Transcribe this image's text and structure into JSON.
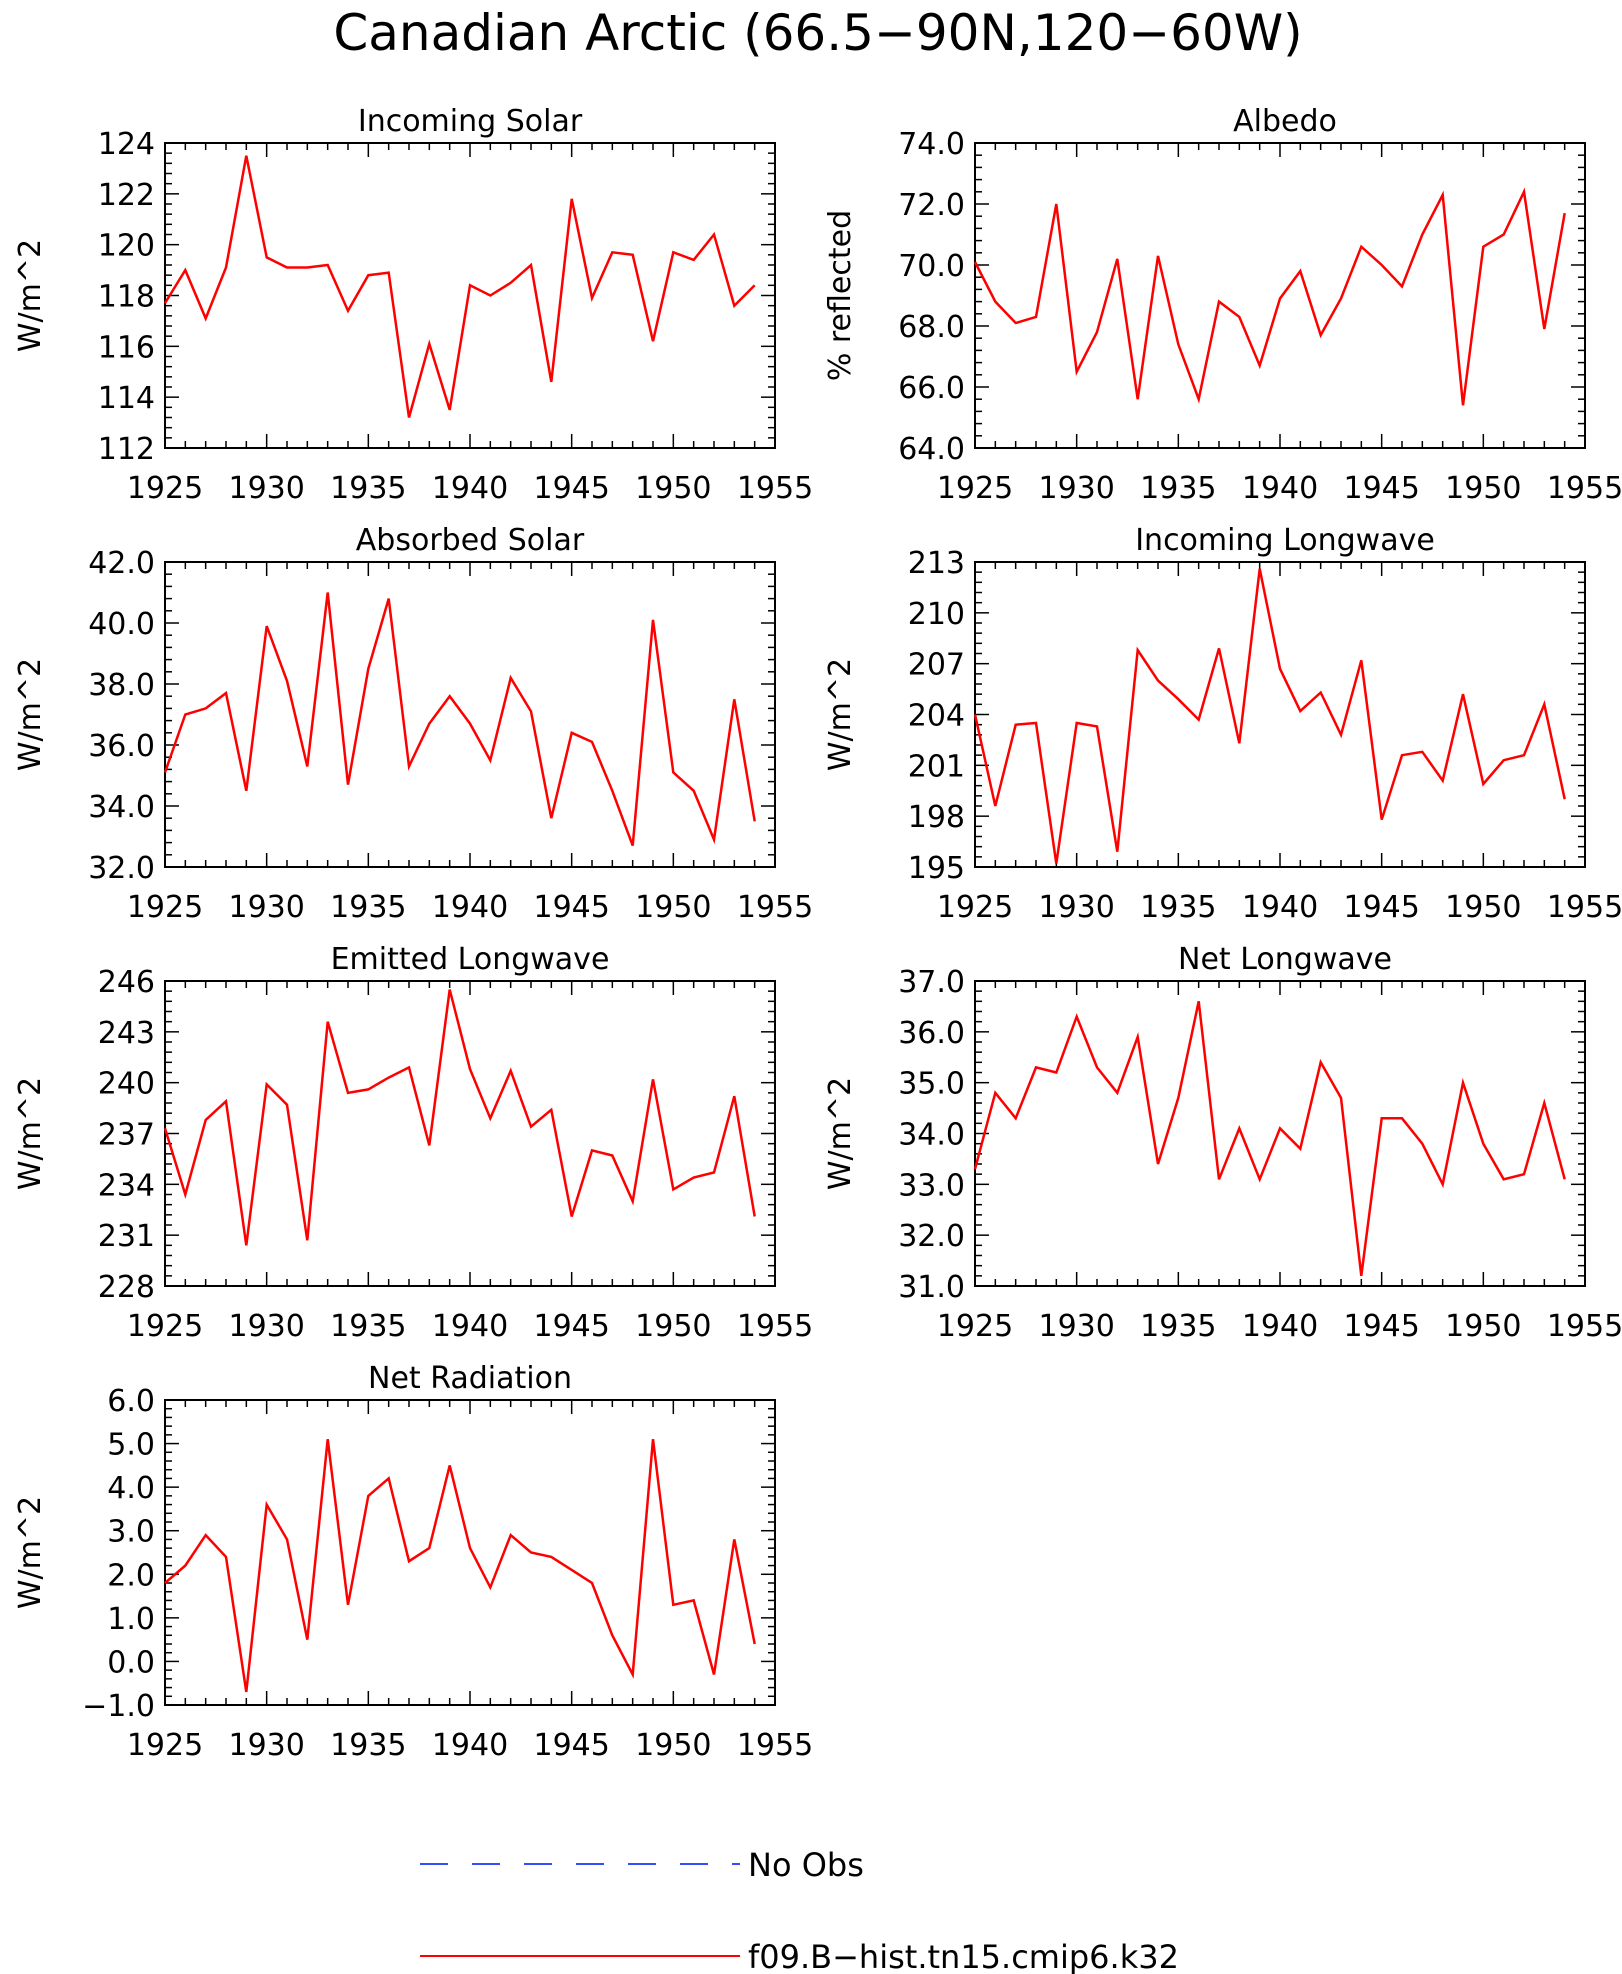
{
  "figure": {
    "title": "Canadian Arctic (66.5−90N,120−60W)",
    "legend": [
      {
        "label": "No Obs",
        "color": "#3050ff",
        "style": "dashed"
      },
      {
        "label": "f09.B−hist.tn15.cmip6.k32",
        "color": "#ff0000",
        "style": "solid"
      }
    ]
  },
  "chart_data": [
    {
      "type": "line",
      "title": "Incoming Solar",
      "ylabel": "W/m^2",
      "xlim": [
        1925,
        1955
      ],
      "ylim": [
        112,
        124
      ],
      "xticks": [
        1925,
        1930,
        1935,
        1940,
        1945,
        1950,
        1955
      ],
      "xtick_labels": [
        "1925",
        "1930",
        "1935",
        "1940",
        "1945",
        "1950",
        "1955"
      ],
      "yticks": [
        112,
        114,
        116,
        118,
        120,
        122,
        124
      ],
      "ytick_labels": [
        "112",
        "114",
        "116",
        "118",
        "120",
        "122",
        "124"
      ],
      "x": [
        1925,
        1926,
        1927,
        1928,
        1929,
        1930,
        1931,
        1932,
        1933,
        1934,
        1935,
        1936,
        1937,
        1938,
        1939,
        1940,
        1941,
        1942,
        1943,
        1944,
        1945,
        1946,
        1947,
        1948,
        1949,
        1950,
        1951,
        1952,
        1953,
        1954
      ],
      "series": [
        {
          "name": "f09.B−hist.tn15.cmip6.k32",
          "color": "#ff0000",
          "values": [
            117.7,
            119.0,
            117.1,
            119.1,
            123.5,
            119.5,
            119.1,
            119.1,
            119.2,
            117.4,
            118.8,
            118.9,
            113.2,
            116.1,
            113.5,
            118.4,
            118.0,
            118.5,
            119.2,
            114.6,
            121.8,
            117.9,
            119.7,
            119.6,
            116.2,
            119.7,
            119.4,
            120.4,
            117.6,
            118.4
          ]
        }
      ]
    },
    {
      "type": "line",
      "title": "Albedo",
      "ylabel": "% reflected",
      "xlim": [
        1925,
        1955
      ],
      "ylim": [
        64,
        74
      ],
      "xticks": [
        1925,
        1930,
        1935,
        1940,
        1945,
        1950,
        1955
      ],
      "xtick_labels": [
        "1925",
        "1930",
        "1935",
        "1940",
        "1945",
        "1950",
        "1955"
      ],
      "yticks": [
        64,
        66,
        68,
        70,
        72,
        74
      ],
      "ytick_labels": [
        "64.0",
        "66.0",
        "68.0",
        "70.0",
        "72.0",
        "74.0"
      ],
      "x": [
        1925,
        1926,
        1927,
        1928,
        1929,
        1930,
        1931,
        1932,
        1933,
        1934,
        1935,
        1936,
        1937,
        1938,
        1939,
        1940,
        1941,
        1942,
        1943,
        1944,
        1945,
        1946,
        1947,
        1948,
        1949,
        1950,
        1951,
        1952,
        1953,
        1954
      ],
      "series": [
        {
          "name": "f09.B−hist.tn15.cmip6.k32",
          "color": "#ff0000",
          "values": [
            70.1,
            68.8,
            68.1,
            68.3,
            72.0,
            66.5,
            67.8,
            70.2,
            65.6,
            70.3,
            67.4,
            65.6,
            68.8,
            68.3,
            66.7,
            68.9,
            69.8,
            67.7,
            68.9,
            70.6,
            70.0,
            69.3,
            71.0,
            72.3,
            65.4,
            70.6,
            71.0,
            72.4,
            67.9,
            71.7
          ]
        }
      ]
    },
    {
      "type": "line",
      "title": "Absorbed Solar",
      "ylabel": "W/m^2",
      "xlim": [
        1925,
        1955
      ],
      "ylim": [
        32,
        42
      ],
      "xticks": [
        1925,
        1930,
        1935,
        1940,
        1945,
        1950,
        1955
      ],
      "xtick_labels": [
        "1925",
        "1930",
        "1935",
        "1940",
        "1945",
        "1950",
        "1955"
      ],
      "yticks": [
        32,
        34,
        36,
        38,
        40,
        42
      ],
      "ytick_labels": [
        "32.0",
        "34.0",
        "36.0",
        "38.0",
        "40.0",
        "42.0"
      ],
      "x": [
        1925,
        1926,
        1927,
        1928,
        1929,
        1930,
        1931,
        1932,
        1933,
        1934,
        1935,
        1936,
        1937,
        1938,
        1939,
        1940,
        1941,
        1942,
        1943,
        1944,
        1945,
        1946,
        1947,
        1948,
        1949,
        1950,
        1951,
        1952,
        1953,
        1954
      ],
      "series": [
        {
          "name": "f09.B−hist.tn15.cmip6.k32",
          "color": "#ff0000",
          "values": [
            35.1,
            37.0,
            37.2,
            37.7,
            34.5,
            39.9,
            38.1,
            35.3,
            41.0,
            34.7,
            38.5,
            40.8,
            35.3,
            36.7,
            37.6,
            36.7,
            35.5,
            38.2,
            37.1,
            33.6,
            36.4,
            36.1,
            34.5,
            32.7,
            40.1,
            35.1,
            34.5,
            32.9,
            37.5,
            33.5
          ]
        }
      ]
    },
    {
      "type": "line",
      "title": "Incoming Longwave",
      "ylabel": "W/m^2",
      "xlim": [
        1925,
        1955
      ],
      "ylim": [
        195,
        213
      ],
      "xticks": [
        1925,
        1930,
        1935,
        1940,
        1945,
        1950,
        1955
      ],
      "xtick_labels": [
        "1925",
        "1930",
        "1935",
        "1940",
        "1945",
        "1950",
        "1955"
      ],
      "yticks": [
        195,
        198,
        201,
        204,
        207,
        210,
        213
      ],
      "ytick_labels": [
        "195",
        "198",
        "201",
        "204",
        "207",
        "210",
        "213"
      ],
      "x": [
        1925,
        1926,
        1927,
        1928,
        1929,
        1930,
        1931,
        1932,
        1933,
        1934,
        1935,
        1936,
        1937,
        1938,
        1939,
        1940,
        1941,
        1942,
        1943,
        1944,
        1945,
        1946,
        1947,
        1948,
        1949,
        1950,
        1951,
        1952,
        1953,
        1954
      ],
      "series": [
        {
          "name": "f09.B−hist.tn15.cmip6.k32",
          "color": "#ff0000",
          "values": [
            204.0,
            198.6,
            203.4,
            203.5,
            195.2,
            203.5,
            203.3,
            195.9,
            207.8,
            206.0,
            204.9,
            203.7,
            207.9,
            202.3,
            212.6,
            206.7,
            204.2,
            205.3,
            202.8,
            207.2,
            197.8,
            201.6,
            201.8,
            200.1,
            205.2,
            199.9,
            201.3,
            201.6,
            204.6,
            199.0
          ]
        }
      ]
    },
    {
      "type": "line",
      "title": "Emitted Longwave",
      "ylabel": "W/m^2",
      "xlim": [
        1925,
        1955
      ],
      "ylim": [
        228,
        246
      ],
      "xticks": [
        1925,
        1930,
        1935,
        1940,
        1945,
        1950,
        1955
      ],
      "xtick_labels": [
        "1925",
        "1930",
        "1935",
        "1940",
        "1945",
        "1950",
        "1955"
      ],
      "yticks": [
        228,
        231,
        234,
        237,
        240,
        243,
        246
      ],
      "ytick_labels": [
        "228",
        "231",
        "234",
        "237",
        "240",
        "243",
        "246"
      ],
      "x": [
        1925,
        1926,
        1927,
        1928,
        1929,
        1930,
        1931,
        1932,
        1933,
        1934,
        1935,
        1936,
        1937,
        1938,
        1939,
        1940,
        1941,
        1942,
        1943,
        1944,
        1945,
        1946,
        1947,
        1948,
        1949,
        1950,
        1951,
        1952,
        1953,
        1954
      ],
      "series": [
        {
          "name": "f09.B−hist.tn15.cmip6.k32",
          "color": "#ff0000",
          "values": [
            237.3,
            233.4,
            237.8,
            238.9,
            230.4,
            239.9,
            238.7,
            230.7,
            243.6,
            239.4,
            239.6,
            240.3,
            240.9,
            236.3,
            245.5,
            240.8,
            237.9,
            240.7,
            237.4,
            238.4,
            232.1,
            236.0,
            235.7,
            233.0,
            240.2,
            233.7,
            234.4,
            234.7,
            239.2,
            232.1
          ]
        }
      ]
    },
    {
      "type": "line",
      "title": "Net Longwave",
      "ylabel": "W/m^2",
      "xlim": [
        1925,
        1955
      ],
      "ylim": [
        31,
        37
      ],
      "xticks": [
        1925,
        1930,
        1935,
        1940,
        1945,
        1950,
        1955
      ],
      "xtick_labels": [
        "1925",
        "1930",
        "1935",
        "1940",
        "1945",
        "1950",
        "1955"
      ],
      "yticks": [
        31,
        32,
        33,
        34,
        35,
        36,
        37
      ],
      "ytick_labels": [
        "31.0",
        "32.0",
        "33.0",
        "34.0",
        "35.0",
        "36.0",
        "37.0"
      ],
      "x": [
        1925,
        1926,
        1927,
        1928,
        1929,
        1930,
        1931,
        1932,
        1933,
        1934,
        1935,
        1936,
        1937,
        1938,
        1939,
        1940,
        1941,
        1942,
        1943,
        1944,
        1945,
        1946,
        1947,
        1948,
        1949,
        1950,
        1951,
        1952,
        1953,
        1954
      ],
      "series": [
        {
          "name": "f09.B−hist.tn15.cmip6.k32",
          "color": "#ff0000",
          "values": [
            33.3,
            34.8,
            34.3,
            35.3,
            35.2,
            36.3,
            35.3,
            34.8,
            35.9,
            33.4,
            34.7,
            36.6,
            33.1,
            34.1,
            33.1,
            34.1,
            33.7,
            35.4,
            34.7,
            31.2,
            34.3,
            34.3,
            33.8,
            33.0,
            35.0,
            33.8,
            33.1,
            33.2,
            34.6,
            33.1
          ]
        }
      ]
    },
    {
      "type": "line",
      "title": "Net Radiation",
      "ylabel": "W/m^2",
      "xlim": [
        1925,
        1955
      ],
      "ylim": [
        -1,
        6
      ],
      "xticks": [
        1925,
        1930,
        1935,
        1940,
        1945,
        1950,
        1955
      ],
      "xtick_labels": [
        "1925",
        "1930",
        "1935",
        "1940",
        "1945",
        "1950",
        "1955"
      ],
      "yticks": [
        -1,
        0,
        1,
        2,
        3,
        4,
        5,
        6
      ],
      "ytick_labels": [
        "−1.0",
        "0.0",
        "1.0",
        "2.0",
        "3.0",
        "4.0",
        "5.0",
        "6.0"
      ],
      "x": [
        1925,
        1926,
        1927,
        1928,
        1929,
        1930,
        1931,
        1932,
        1933,
        1934,
        1935,
        1936,
        1937,
        1938,
        1939,
        1940,
        1941,
        1942,
        1943,
        1944,
        1945,
        1946,
        1947,
        1948,
        1949,
        1950,
        1951,
        1952,
        1953,
        1954
      ],
      "series": [
        {
          "name": "f09.B−hist.tn15.cmip6.k32",
          "color": "#ff0000",
          "values": [
            1.8,
            2.2,
            2.9,
            2.4,
            -0.7,
            3.6,
            2.8,
            0.5,
            5.1,
            1.3,
            3.8,
            4.2,
            2.3,
            2.6,
            4.5,
            2.6,
            1.7,
            2.9,
            2.5,
            2.4,
            2.1,
            1.8,
            0.6,
            -0.3,
            5.1,
            1.3,
            1.4,
            -0.3,
            2.8,
            0.4
          ]
        }
      ]
    }
  ]
}
